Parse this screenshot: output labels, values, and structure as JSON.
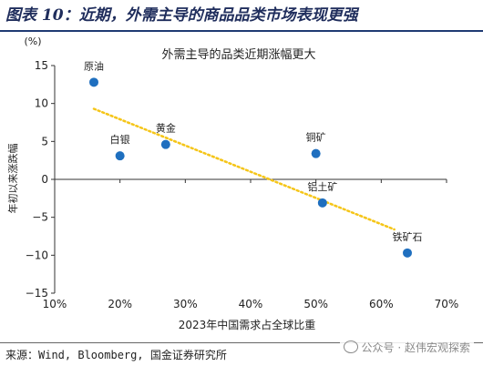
{
  "figure": {
    "title": "图表 10：近期，外需主导的商品品类市场表现更强",
    "source": "来源：Wind, Bloomberg, 国金证券研究所",
    "watermark": "公众号 · 赵伟宏观探索"
  },
  "chart_data": {
    "type": "scatter",
    "title": "外需主导的品类近期涨幅更大",
    "xlabel": "2023年中国需求占全球比重",
    "ylabel": "年初以来涨跌幅",
    "yunit": "(%)",
    "xlim": [
      10,
      70
    ],
    "ylim": [
      -15,
      15
    ],
    "x_ticks": [
      10,
      20,
      30,
      40,
      50,
      60,
      70
    ],
    "x_tick_labels": [
      "10%",
      "20%",
      "30%",
      "40%",
      "50%",
      "60%",
      "70%"
    ],
    "y_ticks": [
      -15,
      -10,
      -5,
      0,
      5,
      10,
      15
    ],
    "y_tick_labels": [
      "−15",
      "−10",
      "−5",
      "0",
      "5",
      "10",
      "15"
    ],
    "points": [
      {
        "label": "原油",
        "x": 16.0,
        "y": 12.8
      },
      {
        "label": "白银",
        "x": 20.0,
        "y": 3.1
      },
      {
        "label": "黄金",
        "x": 27.0,
        "y": 4.6
      },
      {
        "label": "铜矿",
        "x": 50.0,
        "y": 3.4
      },
      {
        "label": "铝土矿",
        "x": 51.0,
        "y": -3.1
      },
      {
        "label": "铁矿石",
        "x": 64.0,
        "y": -9.7
      }
    ],
    "trendline": {
      "x": [
        16.0,
        62.0
      ],
      "y": [
        9.3,
        -6.6
      ]
    },
    "colors": {
      "point": "#1f6fbf",
      "trend": "#f5c518",
      "axis": "#333333"
    }
  }
}
